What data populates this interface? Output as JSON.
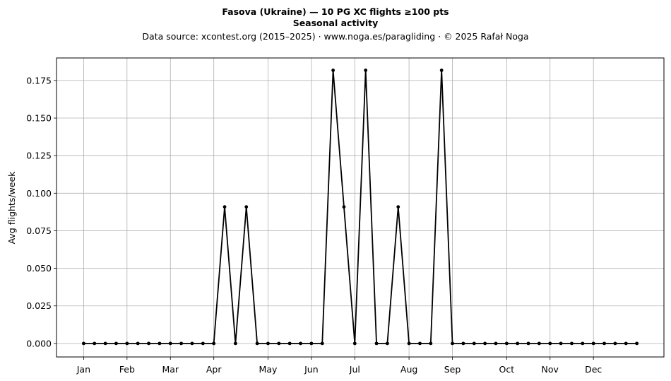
{
  "chart_data": {
    "type": "line",
    "title_line1": "Fasova (Ukraine)  —  10 PG XC flights ≥100 pts",
    "title_line2": "Seasonal activity",
    "subtitle": "Data source: xcontest.org (2015–2025)  ·  www.noga.es/paragliding  ·  © 2025 Rafał Noga",
    "xlabel": "",
    "ylabel": "Avg flights/week",
    "ylim": [
      -0.009,
      0.19
    ],
    "yticks": [
      "0.000",
      "0.025",
      "0.050",
      "0.075",
      "0.100",
      "0.125",
      "0.150",
      "0.175"
    ],
    "month_ticks": [
      {
        "label": "Jan",
        "week": 1
      },
      {
        "label": "Feb",
        "week": 5
      },
      {
        "label": "Mar",
        "week": 9
      },
      {
        "label": "Apr",
        "week": 13
      },
      {
        "label": "May",
        "week": 18
      },
      {
        "label": "Jun",
        "week": 22
      },
      {
        "label": "Jul",
        "week": 26
      },
      {
        "label": "Aug",
        "week": 31
      },
      {
        "label": "Sep",
        "week": 35
      },
      {
        "label": "Oct",
        "week": 40
      },
      {
        "label": "Nov",
        "week": 44
      },
      {
        "label": "Dec",
        "week": 48
      }
    ],
    "grid": true,
    "line_color": "#000000",
    "series": [
      {
        "x": [
          1,
          2,
          3,
          4,
          5,
          6,
          7,
          8,
          9,
          10,
          11,
          12,
          13,
          14,
          15,
          16,
          17,
          18,
          19,
          20,
          21,
          22,
          23,
          24,
          25,
          26,
          27,
          28,
          29,
          30,
          31,
          32,
          33,
          34,
          35,
          36,
          37,
          38,
          39,
          40,
          41,
          42,
          43,
          44,
          45,
          46,
          47,
          48,
          49,
          50,
          51,
          52
        ],
        "values": [
          0,
          0,
          0,
          0,
          0,
          0,
          0,
          0,
          0,
          0,
          0,
          0,
          0,
          0.0909,
          0,
          0.0909,
          0,
          0,
          0,
          0,
          0,
          0,
          0,
          0.1818,
          0.0909,
          0,
          0.1818,
          0,
          0,
          0.0909,
          0,
          0,
          0,
          0.1818,
          0,
          0,
          0,
          0,
          0,
          0,
          0,
          0,
          0,
          0,
          0,
          0,
          0,
          0,
          0,
          0,
          0,
          0
        ]
      }
    ]
  }
}
